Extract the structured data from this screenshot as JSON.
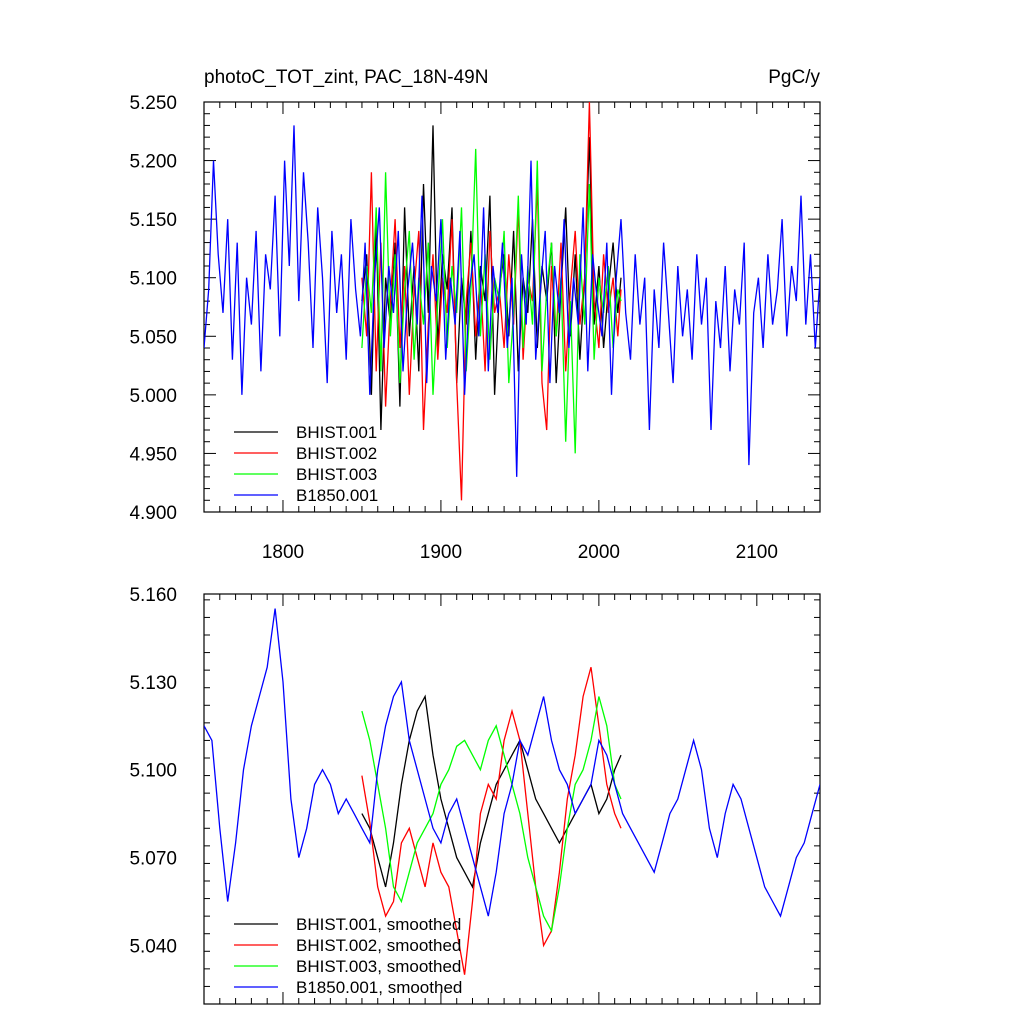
{
  "chart_data": [
    {
      "type": "line",
      "title": "photoC_TOT_zint, PAC_18N-49N",
      "units": "PgC/y",
      "xlabel": "",
      "ylabel": "",
      "xlim": [
        1750,
        2140
      ],
      "ylim": [
        4.9,
        5.25
      ],
      "x_ticks": [
        1800,
        1900,
        2000,
        2100
      ],
      "x_tick_labels": [
        "1800",
        "1900",
        "2000",
        "2100"
      ],
      "y_ticks": [
        4.9,
        4.95,
        5.0,
        5.05,
        5.1,
        5.15,
        5.2,
        5.25
      ],
      "y_tick_labels": [
        "4.900",
        "4.950",
        "5.000",
        "5.050",
        "5.100",
        "5.150",
        "5.200",
        "5.250"
      ],
      "grid": false,
      "legend_position": "bottom-left",
      "series": [
        {
          "name": "BHIST.001",
          "color": "#000000",
          "x": [
            1850,
            1853,
            1856,
            1859,
            1862,
            1865,
            1868,
            1871,
            1874,
            1877,
            1880,
            1883,
            1886,
            1889,
            1892,
            1895,
            1898,
            1901,
            1904,
            1907,
            1910,
            1913,
            1916,
            1919,
            1922,
            1925,
            1928,
            1931,
            1934,
            1937,
            1940,
            1943,
            1946,
            1949,
            1952,
            1955,
            1958,
            1961,
            1964,
            1967,
            1970,
            1973,
            1976,
            1979,
            1982,
            1985,
            1988,
            1991,
            1994,
            1997,
            2000,
            2003,
            2006,
            2009,
            2012,
            2014
          ],
          "y": [
            5.08,
            5.12,
            5.0,
            5.15,
            4.97,
            5.1,
            5.06,
            5.13,
            4.99,
            5.16,
            5.05,
            5.11,
            5.02,
            5.18,
            5.07,
            5.23,
            5.04,
            5.12,
            5.09,
            5.16,
            5.01,
            5.1,
            5.06,
            5.14,
            5.03,
            5.11,
            5.08,
            5.17,
            5.0,
            5.09,
            5.12,
            5.05,
            5.14,
            5.02,
            5.1,
            5.07,
            5.15,
            5.04,
            5.11,
            5.08,
            5.13,
            5.01,
            5.09,
            5.16,
            5.05,
            5.12,
            5.03,
            5.1,
            5.22,
            5.06,
            5.11,
            5.04,
            5.09,
            5.13,
            5.07,
            5.1
          ]
        },
        {
          "name": "BHIST.002",
          "color": "#ff0000",
          "x": [
            1850,
            1853,
            1856,
            1859,
            1862,
            1865,
            1868,
            1871,
            1874,
            1877,
            1880,
            1883,
            1886,
            1889,
            1892,
            1895,
            1898,
            1901,
            1904,
            1907,
            1910,
            1913,
            1916,
            1919,
            1922,
            1925,
            1928,
            1931,
            1934,
            1937,
            1940,
            1943,
            1946,
            1949,
            1952,
            1955,
            1958,
            1961,
            1964,
            1967,
            1970,
            1973,
            1976,
            1979,
            1982,
            1985,
            1988,
            1991,
            1994,
            1997,
            2000,
            2003,
            2006,
            2009,
            2012,
            2014
          ],
          "y": [
            5.1,
            5.05,
            5.19,
            5.02,
            5.13,
            4.99,
            5.08,
            5.15,
            5.04,
            5.11,
            5.0,
            5.09,
            5.14,
            4.97,
            5.06,
            5.12,
            5.03,
            5.1,
            5.07,
            5.15,
            5.01,
            4.91,
            5.08,
            5.13,
            5.05,
            5.1,
            5.02,
            5.14,
            5.07,
            5.09,
            5.04,
            5.12,
            5.06,
            5.16,
            5.03,
            5.1,
            5.08,
            5.18,
            5.01,
            4.97,
            5.11,
            5.05,
            5.13,
            5.02,
            5.09,
            5.14,
            5.06,
            5.1,
            5.25,
            5.08,
            5.04,
            5.12,
            5.07,
            5.1,
            5.05,
            5.09
          ]
        },
        {
          "name": "BHIST.003",
          "color": "#00ff00",
          "x": [
            1850,
            1853,
            1856,
            1859,
            1862,
            1865,
            1868,
            1871,
            1874,
            1877,
            1880,
            1883,
            1886,
            1889,
            1892,
            1895,
            1898,
            1901,
            1904,
            1907,
            1910,
            1913,
            1916,
            1919,
            1922,
            1925,
            1928,
            1931,
            1934,
            1937,
            1940,
            1943,
            1946,
            1949,
            1952,
            1955,
            1958,
            1961,
            1964,
            1967,
            1970,
            1973,
            1976,
            1979,
            1982,
            1985,
            1988,
            1991,
            1994,
            1997,
            2000,
            2003,
            2006,
            2009,
            2012,
            2014
          ],
          "y": [
            5.04,
            5.11,
            5.07,
            5.16,
            5.02,
            5.19,
            5.05,
            5.12,
            5.01,
            5.09,
            5.14,
            5.03,
            5.1,
            5.06,
            5.13,
            5.0,
            5.08,
            5.15,
            5.04,
            5.11,
            5.07,
            5.16,
            5.02,
            5.09,
            5.21,
            5.05,
            5.12,
            5.03,
            5.1,
            5.08,
            5.14,
            5.01,
            5.07,
            5.17,
            5.04,
            5.11,
            5.06,
            5.2,
            5.02,
            5.09,
            5.13,
            5.05,
            5.1,
            4.96,
            5.08,
            4.95,
            5.12,
            5.06,
            5.18,
            5.03,
            5.1,
            5.07,
            5.11,
            5.04,
            5.09,
            5.08
          ]
        },
        {
          "name": "B1850.001",
          "color": "#0000ff",
          "x": [
            1750,
            1753,
            1756,
            1759,
            1762,
            1765,
            1768,
            1771,
            1774,
            1777,
            1780,
            1783,
            1786,
            1789,
            1792,
            1795,
            1798,
            1801,
            1804,
            1807,
            1810,
            1813,
            1816,
            1819,
            1822,
            1825,
            1828,
            1831,
            1834,
            1837,
            1840,
            1843,
            1846,
            1849,
            1852,
            1855,
            1858,
            1861,
            1864,
            1867,
            1870,
            1873,
            1876,
            1879,
            1882,
            1885,
            1888,
            1891,
            1894,
            1897,
            1900,
            1903,
            1906,
            1909,
            1912,
            1915,
            1918,
            1921,
            1924,
            1927,
            1930,
            1933,
            1936,
            1939,
            1942,
            1945,
            1948,
            1951,
            1954,
            1957,
            1960,
            1963,
            1966,
            1969,
            1972,
            1975,
            1978,
            1981,
            1984,
            1987,
            1990,
            1993,
            1996,
            1999,
            2002,
            2005,
            2008,
            2011,
            2014,
            2017,
            2020,
            2023,
            2026,
            2029,
            2032,
            2035,
            2038,
            2041,
            2044,
            2047,
            2050,
            2053,
            2056,
            2059,
            2062,
            2065,
            2068,
            2071,
            2074,
            2077,
            2080,
            2083,
            2086,
            2089,
            2092,
            2095,
            2098,
            2101,
            2104,
            2107,
            2110,
            2113,
            2116,
            2119,
            2122,
            2125,
            2128,
            2131,
            2134,
            2137,
            2140
          ],
          "y": [
            5.04,
            5.09,
            5.2,
            5.12,
            5.07,
            5.15,
            5.03,
            5.13,
            5.0,
            5.1,
            5.06,
            5.14,
            5.02,
            5.12,
            5.09,
            5.17,
            5.05,
            5.2,
            5.11,
            5.23,
            5.08,
            5.19,
            5.13,
            5.04,
            5.16,
            5.1,
            5.01,
            5.14,
            5.07,
            5.12,
            5.03,
            5.15,
            5.09,
            5.05,
            5.13,
            5.0,
            5.1,
            5.16,
            5.04,
            5.11,
            5.07,
            5.14,
            5.02,
            5.09,
            5.13,
            5.06,
            5.17,
            5.01,
            5.11,
            5.08,
            5.15,
            5.03,
            5.1,
            5.06,
            5.14,
            5.0,
            5.09,
            5.12,
            5.05,
            5.16,
            5.02,
            5.11,
            5.07,
            5.13,
            5.04,
            5.1,
            4.93,
            5.12,
            5.06,
            5.2,
            5.03,
            5.09,
            5.14,
            5.01,
            5.11,
            5.07,
            5.15,
            5.04,
            5.1,
            5.06,
            5.16,
            5.02,
            5.12,
            5.08,
            5.05,
            5.13,
            5.0,
            5.1,
            5.15,
            5.07,
            5.03,
            5.12,
            5.06,
            5.1,
            4.97,
            5.09,
            5.04,
            5.13,
            5.07,
            5.01,
            5.11,
            5.05,
            5.09,
            5.03,
            5.12,
            5.06,
            5.1,
            4.97,
            5.08,
            5.04,
            5.11,
            5.02,
            5.09,
            5.06,
            5.13,
            4.94,
            5.07,
            5.1,
            5.04,
            5.12,
            5.06,
            5.09,
            5.15,
            5.05,
            5.11,
            5.08,
            5.17,
            5.06,
            5.12,
            5.04,
            5.1
          ]
        }
      ]
    },
    {
      "type": "line",
      "title": "",
      "xlabel": "",
      "ylabel": "",
      "xlim": [
        1750,
        2140
      ],
      "ylim": [
        5.02,
        5.16
      ],
      "x_ticks": [
        1800,
        1900,
        2000,
        2100
      ],
      "y_ticks": [
        5.04,
        5.07,
        5.1,
        5.13,
        5.16
      ],
      "y_tick_labels": [
        "5.040",
        "5.070",
        "5.100",
        "5.130",
        "5.160"
      ],
      "grid": false,
      "legend_position": "bottom-left",
      "series": [
        {
          "name": "BHIST.001, smoothed",
          "color": "#000000",
          "x": [
            1850,
            1855,
            1860,
            1865,
            1870,
            1875,
            1880,
            1885,
            1890,
            1895,
            1900,
            1905,
            1910,
            1915,
            1920,
            1925,
            1930,
            1935,
            1940,
            1945,
            1950,
            1955,
            1960,
            1965,
            1970,
            1975,
            1980,
            1985,
            1990,
            1995,
            2000,
            2005,
            2010,
            2014
          ],
          "y": [
            5.085,
            5.08,
            5.07,
            5.06,
            5.075,
            5.095,
            5.11,
            5.12,
            5.125,
            5.105,
            5.09,
            5.08,
            5.07,
            5.065,
            5.06,
            5.075,
            5.085,
            5.095,
            5.1,
            5.105,
            5.11,
            5.1,
            5.09,
            5.085,
            5.08,
            5.075,
            5.08,
            5.085,
            5.09,
            5.095,
            5.085,
            5.09,
            5.1,
            5.105
          ]
        },
        {
          "name": "BHIST.002, smoothed",
          "color": "#ff0000",
          "x": [
            1850,
            1855,
            1860,
            1865,
            1870,
            1875,
            1880,
            1885,
            1890,
            1895,
            1900,
            1905,
            1910,
            1915,
            1920,
            1925,
            1930,
            1935,
            1940,
            1945,
            1950,
            1955,
            1960,
            1965,
            1970,
            1975,
            1980,
            1985,
            1990,
            1995,
            2000,
            2005,
            2010,
            2014
          ],
          "y": [
            5.098,
            5.082,
            5.06,
            5.05,
            5.055,
            5.075,
            5.08,
            5.07,
            5.06,
            5.075,
            5.065,
            5.06,
            5.045,
            5.03,
            5.055,
            5.085,
            5.095,
            5.09,
            5.11,
            5.12,
            5.11,
            5.085,
            5.06,
            5.04,
            5.045,
            5.065,
            5.09,
            5.105,
            5.125,
            5.135,
            5.115,
            5.095,
            5.085,
            5.08
          ]
        },
        {
          "name": "BHIST.003, smoothed",
          "color": "#00ff00",
          "x": [
            1850,
            1855,
            1860,
            1865,
            1870,
            1875,
            1880,
            1885,
            1890,
            1895,
            1900,
            1905,
            1910,
            1915,
            1920,
            1925,
            1930,
            1935,
            1940,
            1945,
            1950,
            1955,
            1960,
            1965,
            1970,
            1975,
            1980,
            1985,
            1990,
            1995,
            2000,
            2005,
            2010,
            2014
          ],
          "y": [
            5.12,
            5.11,
            5.095,
            5.08,
            5.06,
            5.055,
            5.065,
            5.075,
            5.08,
            5.085,
            5.095,
            5.1,
            5.108,
            5.11,
            5.105,
            5.1,
            5.11,
            5.115,
            5.105,
            5.095,
            5.085,
            5.07,
            5.06,
            5.05,
            5.045,
            5.06,
            5.08,
            5.095,
            5.1,
            5.11,
            5.125,
            5.115,
            5.095,
            5.09
          ]
        },
        {
          "name": "B1850.001, smoothed",
          "color": "#0000ff",
          "x": [
            1750,
            1755,
            1760,
            1765,
            1770,
            1775,
            1780,
            1785,
            1790,
            1795,
            1800,
            1805,
            1810,
            1815,
            1820,
            1825,
            1830,
            1835,
            1840,
            1845,
            1850,
            1855,
            1860,
            1865,
            1870,
            1875,
            1880,
            1885,
            1890,
            1895,
            1900,
            1905,
            1910,
            1915,
            1920,
            1925,
            1930,
            1935,
            1940,
            1945,
            1950,
            1955,
            1960,
            1965,
            1970,
            1975,
            1980,
            1985,
            1990,
            1995,
            2000,
            2005,
            2010,
            2015,
            2020,
            2025,
            2030,
            2035,
            2040,
            2045,
            2050,
            2055,
            2060,
            2065,
            2070,
            2075,
            2080,
            2085,
            2090,
            2095,
            2100,
            2105,
            2110,
            2115,
            2120,
            2125,
            2130,
            2135,
            2140
          ],
          "y": [
            5.115,
            5.11,
            5.08,
            5.055,
            5.075,
            5.1,
            5.115,
            5.125,
            5.135,
            5.155,
            5.13,
            5.09,
            5.07,
            5.08,
            5.095,
            5.1,
            5.095,
            5.085,
            5.09,
            5.085,
            5.08,
            5.075,
            5.1,
            5.115,
            5.125,
            5.13,
            5.11,
            5.1,
            5.09,
            5.08,
            5.075,
            5.085,
            5.09,
            5.08,
            5.07,
            5.06,
            5.05,
            5.065,
            5.085,
            5.095,
            5.11,
            5.105,
            5.115,
            5.125,
            5.11,
            5.1,
            5.095,
            5.085,
            5.09,
            5.095,
            5.11,
            5.105,
            5.095,
            5.085,
            5.08,
            5.075,
            5.07,
            5.065,
            5.075,
            5.085,
            5.09,
            5.1,
            5.11,
            5.1,
            5.08,
            5.07,
            5.085,
            5.095,
            5.09,
            5.08,
            5.07,
            5.06,
            5.055,
            5.05,
            5.06,
            5.07,
            5.075,
            5.085,
            5.095
          ]
        }
      ]
    }
  ]
}
